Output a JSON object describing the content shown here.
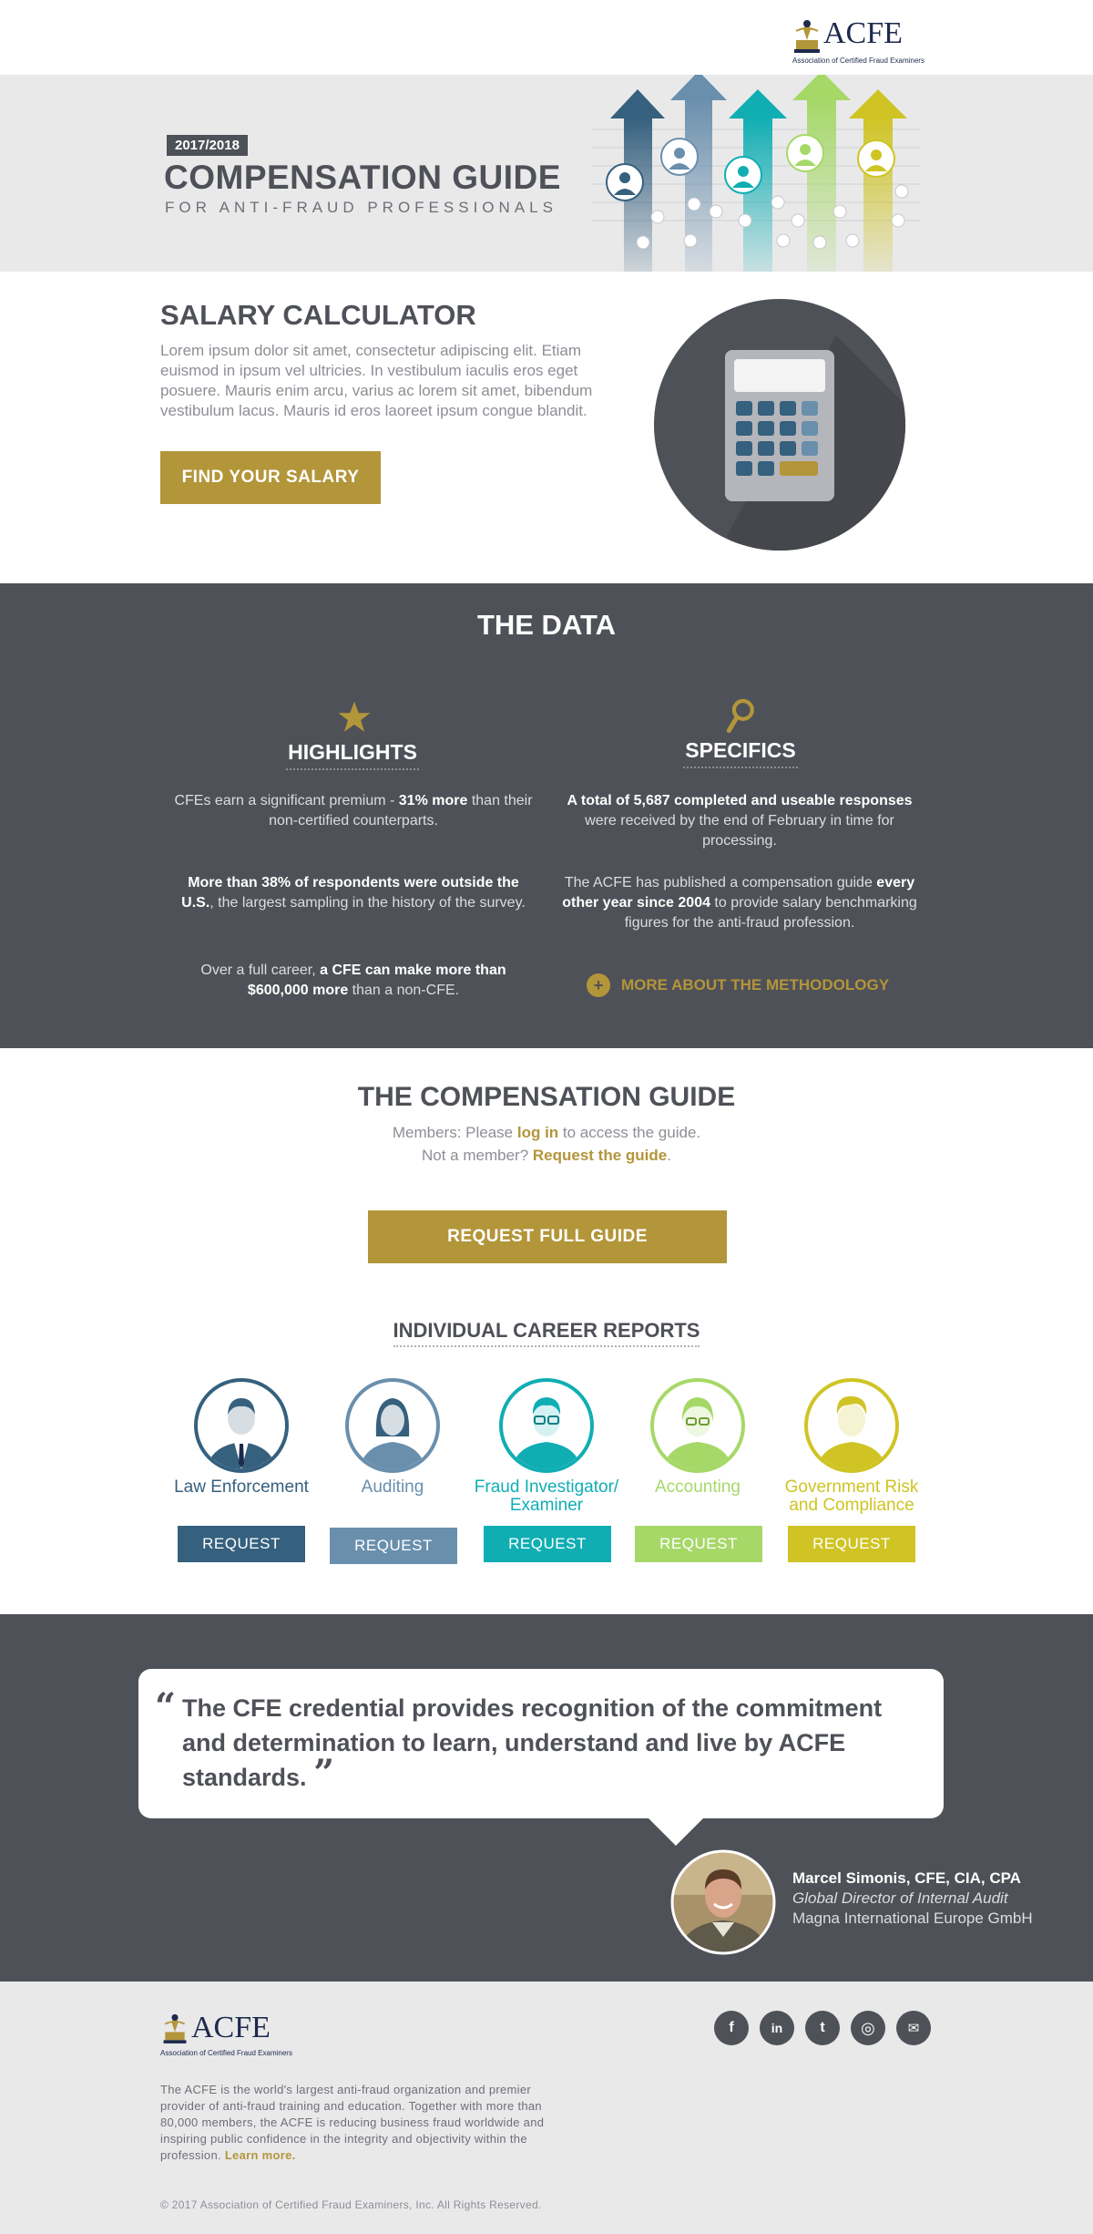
{
  "header": {
    "logo_text": "ACFE",
    "logo_sub": "Association of Certified Fraud Examiners"
  },
  "hero": {
    "year": "2017/2018",
    "title": "COMPENSATION GUIDE",
    "subtitle": "FOR ANTI-FRAUD PROFESSIONALS"
  },
  "calculator": {
    "title": "SALARY CALCULATOR",
    "text": "Lorem ipsum dolor sit amet, consectetur adipiscing elit. Etiam euismod in ipsum vel ultricies. In vestibulum iaculis eros eget posuere. Mauris enim arcu, varius ac lorem sit amet, bibendum vestibulum lacus. Mauris id eros laoreet ipsum congue blandit.",
    "button": "FIND YOUR SALARY"
  },
  "data_section": {
    "title": "THE DATA",
    "highlights": {
      "heading": "HIGHLIGHTS",
      "p1": {
        "a": "CFEs earn a significant premium - ",
        "b": "31% more",
        "c": " than their non-certified counterparts."
      },
      "p2": {
        "b": "More than 38% of respondents were outside the U.S.",
        "c": ", the largest sampling in the history of the survey."
      },
      "p3": {
        "a": "Over a full career, ",
        "b": "a CFE can make more than $600,000 more",
        "c": " than a non-CFE."
      }
    },
    "specifics": {
      "heading": "SPECIFICS",
      "p1": {
        "b": "A total of 5,687 completed and useable responses",
        "c": " were received by the end of February in time for processing."
      },
      "p2": {
        "a": "The ACFE has published a compensation guide ",
        "b": "every other year since 2004",
        "c": " to provide salary benchmarking figures for the anti-fraud profession."
      },
      "link": "MORE ABOUT THE METHODOLOGY"
    }
  },
  "guide": {
    "title": "THE COMPENSATION GUIDE",
    "line1": {
      "a": "Members: Please ",
      "link": "log in",
      "c": " to access the guide."
    },
    "line2": {
      "a": "Not a member? ",
      "link": "Request the guide",
      "c": "."
    },
    "button": "REQUEST FULL GUIDE"
  },
  "reports": {
    "title": "INDIVIDUAL CAREER REPORTS",
    "items": [
      {
        "label": "Law Enforcement",
        "button": "REQUEST",
        "color": "#35607e"
      },
      {
        "label": "Auditing",
        "button": "REQUEST",
        "color": "#6a8fad"
      },
      {
        "label": "Fraud Investigator/ Examiner",
        "button": "REQUEST",
        "color": "#10aeb3"
      },
      {
        "label": "Accounting",
        "button": "REQUEST",
        "color": "#a6d868"
      },
      {
        "label": "Government Risk and Compliance",
        "button": "REQUEST",
        "color": "#cfc424"
      }
    ]
  },
  "quote": {
    "text": "The CFE credential provides recognition of the commitment and determination to learn, understand and live by ACFE standards.",
    "name": "Marcel Simonis, CFE, CIA, CPA",
    "title": "Global Director of Internal Audit",
    "org": "Magna International Europe GmbH"
  },
  "footer": {
    "logo_text": "ACFE",
    "logo_sub": "Association of Certified Fraud Examiners",
    "text": "The ACFE is the world's largest anti-fraud organization and premier provider of anti-fraud training and education. Together with more than 80,000 members, the ACFE is reducing business fraud worldwide and inspiring public confidence in the integrity and objectivity within the profession. ",
    "learn_more": "Learn more.",
    "copyright": "© 2017 Association of Certified Fraud Examiners, Inc. All Rights Reserved.",
    "social": [
      {
        "icon": "facebook-icon",
        "glyph": "f"
      },
      {
        "icon": "linkedin-icon",
        "glyph": "in"
      },
      {
        "icon": "twitter-icon",
        "glyph": "t"
      },
      {
        "icon": "instagram-icon",
        "glyph": "◎"
      },
      {
        "icon": "email-icon",
        "glyph": "✉"
      }
    ]
  },
  "colors": {
    "gold": "#b3953a",
    "dark": "#4f5158",
    "light": "#e9e9ea"
  }
}
